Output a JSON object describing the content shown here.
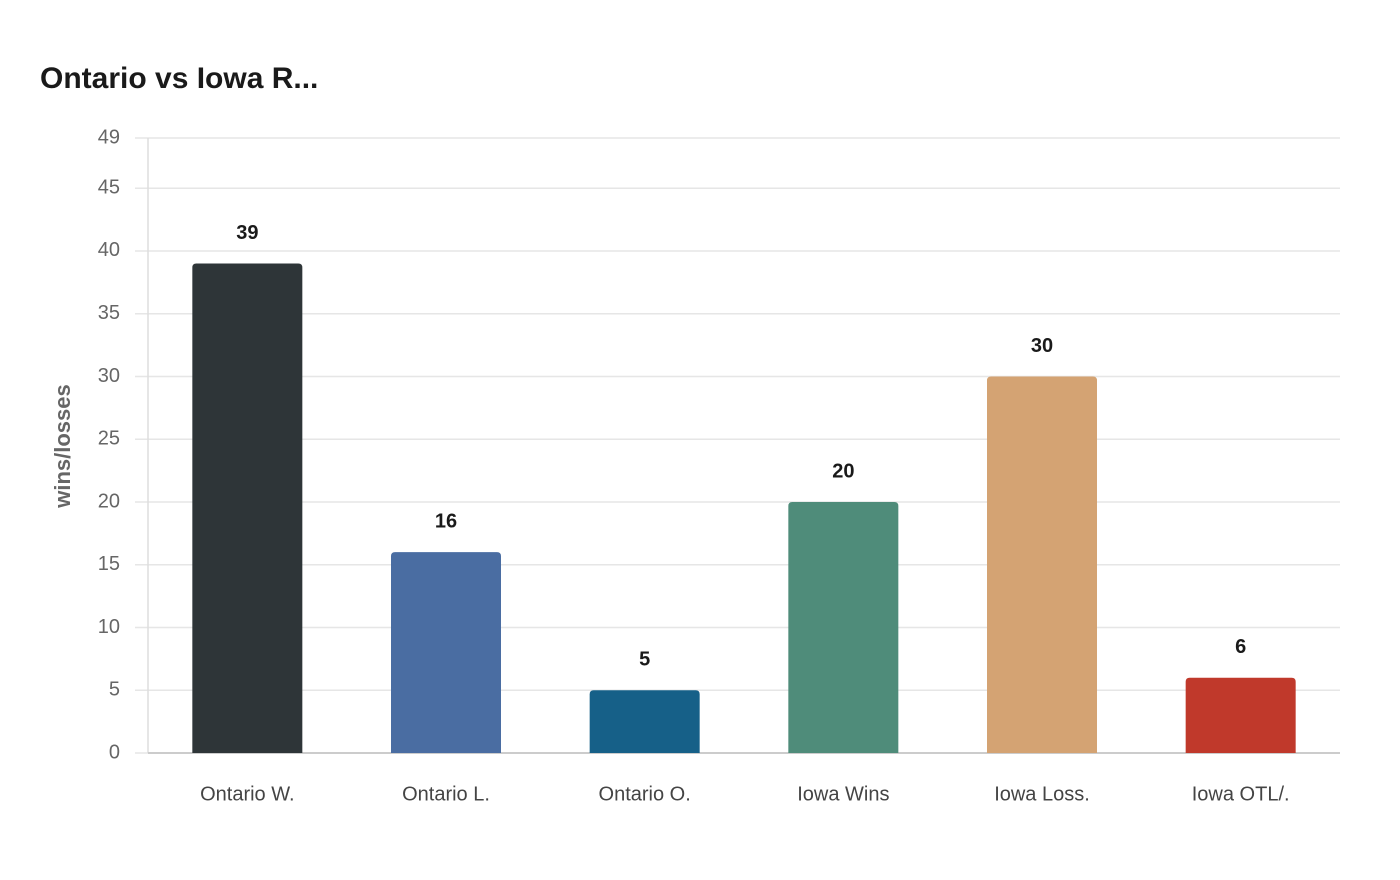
{
  "chart_data": {
    "type": "bar",
    "title": "Ontario vs Iowa R...",
    "ylabel": "wins/losses",
    "categories": [
      "Ontario W.",
      "Ontario L.",
      "Ontario O.",
      "Iowa Wins",
      "Iowa Loss.",
      "Iowa OTL/."
    ],
    "values": [
      39,
      16,
      5,
      20,
      30,
      6
    ],
    "colors": [
      "#2e3538",
      "#4a6da2",
      "#166088",
      "#4f8c7a",
      "#d4a373",
      "#c0392b"
    ],
    "ylim": [
      0,
      49
    ],
    "yticks": [
      0,
      5,
      10,
      15,
      20,
      25,
      30,
      35,
      40,
      45,
      49
    ],
    "grid": true
  }
}
